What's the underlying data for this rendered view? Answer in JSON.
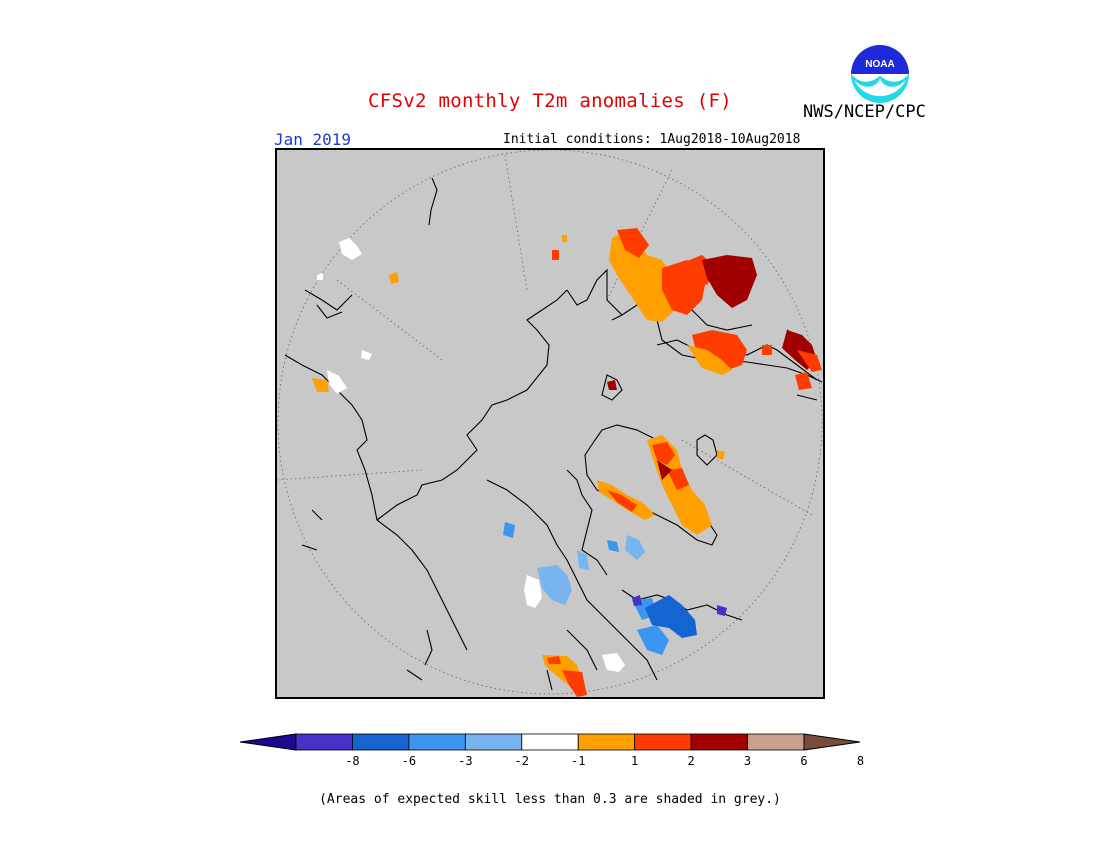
{
  "header": {
    "title": "CFSv2 monthly T2m anomalies (F)",
    "agency": "NWS/NCEP/CPC",
    "logo_text": "NOAA",
    "month": "Jan 2019",
    "initial_conditions": "Initial conditions: 1Aug2018-10Aug2018"
  },
  "colorbar": {
    "colors": [
      "#1a0a90",
      "#4632c8",
      "#1464d2",
      "#3c96f0",
      "#78b4f0",
      "#ffffff",
      "#ffa000",
      "#ff3c00",
      "#a00000",
      "#c8a08c",
      "#7a4a3a"
    ],
    "tick_labels": [
      "-8",
      "-6",
      "-3",
      "-2",
      "-1",
      "1",
      "2",
      "3",
      "6",
      "8"
    ]
  },
  "map": {
    "background_color": "#c8c8c8",
    "projection": "north polar stereographic"
  },
  "footnote": "(Areas of expected skill less than 0.3 are shaded in grey.)"
}
